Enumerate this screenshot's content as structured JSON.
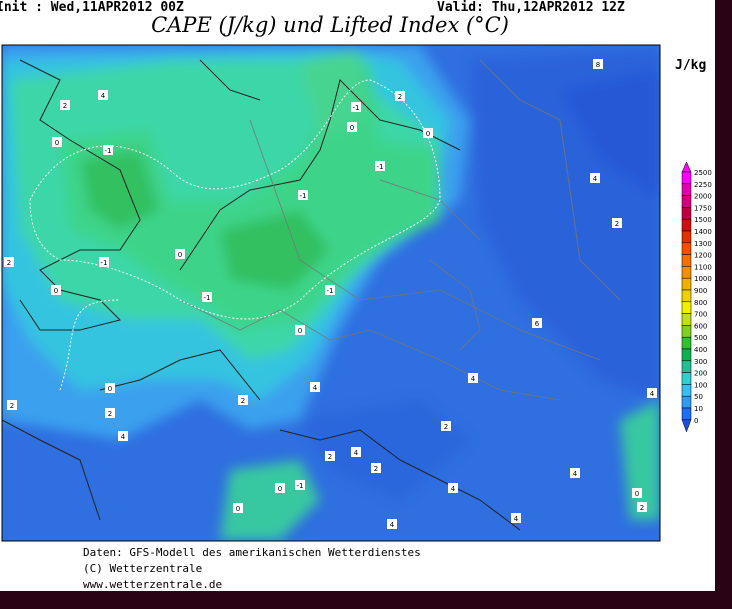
{
  "header": {
    "init": "Init : Wed,11APR2012 00Z",
    "valid": "Valid: Thu,12APR2012 12Z",
    "title": "CAPE (J/kg) und Lifted Index (°C)"
  },
  "colorbar": {
    "unit": "J/kg",
    "labels": [
      "2500",
      "2250",
      "2000",
      "1750",
      "1500",
      "1400",
      "1300",
      "1200",
      "1100",
      "1000",
      "900",
      "800",
      "700",
      "600",
      "500",
      "400",
      "300",
      "200",
      "100",
      "50",
      "10",
      "0"
    ]
  },
  "map": {
    "contour_labels": [
      "2",
      "4",
      "0",
      "-1",
      "-1",
      "0",
      "2",
      "-1",
      "0",
      "-1",
      "0",
      "-1",
      "-1",
      "-1",
      "0",
      "2",
      "0",
      "8",
      "4",
      "2",
      "6",
      "4",
      "4",
      "2",
      "0",
      "2",
      "4",
      "2",
      "2",
      "4",
      "2",
      "-1",
      "0",
      "0",
      "4",
      "4",
      "4",
      "4",
      "4",
      "0",
      "2",
      "2"
    ]
  },
  "footer": {
    "lines": [
      "Daten: GFS-Modell des amerikanischen Wetterdienstes",
      "(C) Wetterzentrale",
      "www.wetterzentrale.de"
    ]
  }
}
